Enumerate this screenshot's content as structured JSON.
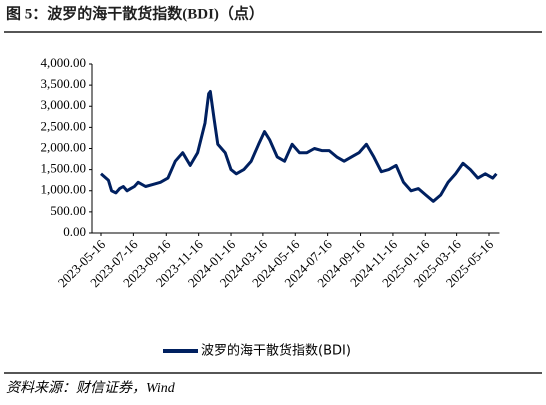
{
  "chart_data": {
    "type": "line",
    "title": "图 5：波罗的海干散货指数(BDI)（点）",
    "source": "资料来源：财信证券，Wind",
    "x": [
      "2023-05-16",
      "2023-05-30",
      "2023-06-05",
      "2023-06-13",
      "2023-06-20",
      "2023-06-27",
      "2023-07-04",
      "2023-07-11",
      "2023-07-18",
      "2023-07-25",
      "2023-08-08",
      "2023-08-22",
      "2023-09-05",
      "2023-09-19",
      "2023-10-03",
      "2023-10-17",
      "2023-10-31",
      "2023-11-14",
      "2023-11-28",
      "2023-12-05",
      "2023-12-08",
      "2023-12-15",
      "2023-12-22",
      "2024-01-05",
      "2024-01-16",
      "2024-01-26",
      "2024-02-09",
      "2024-02-23",
      "2024-03-08",
      "2024-03-19",
      "2024-03-29",
      "2024-04-12",
      "2024-04-26",
      "2024-05-10",
      "2024-05-24",
      "2024-06-07",
      "2024-06-21",
      "2024-07-05",
      "2024-07-19",
      "2024-08-02",
      "2024-08-16",
      "2024-08-30",
      "2024-09-13",
      "2024-09-27",
      "2024-10-11",
      "2024-10-25",
      "2024-11-08",
      "2024-11-22",
      "2024-12-06",
      "2024-12-20",
      "2025-01-03",
      "2025-01-17",
      "2025-01-31",
      "2025-02-14",
      "2025-02-28",
      "2025-03-14",
      "2025-03-28",
      "2025-04-11",
      "2025-04-25",
      "2025-05-09",
      "2025-05-23",
      "2025-05-30"
    ],
    "series": [
      {
        "name": "波罗的海干散货指数(BDI)",
        "color": "#002060",
        "values": [
          1400,
          1250,
          1000,
          950,
          1050,
          1100,
          1000,
          1050,
          1100,
          1200,
          1100,
          1150,
          1200,
          1300,
          1700,
          1900,
          1600,
          1900,
          2600,
          3300,
          3350,
          2700,
          2100,
          1900,
          1500,
          1400,
          1500,
          1700,
          2100,
          2400,
          2200,
          1800,
          1700,
          2100,
          1900,
          1900,
          2000,
          1950,
          1950,
          1800,
          1700,
          1800,
          1900,
          2100,
          1800,
          1450,
          1500,
          1600,
          1200,
          1000,
          1050,
          900,
          750,
          900,
          1200,
          1400,
          1650,
          1500,
          1300,
          1400,
          1300,
          1400
        ]
      }
    ],
    "xticks": [
      "2023-05-16",
      "2023-07-16",
      "2023-09-16",
      "2023-11-16",
      "2024-01-16",
      "2024-03-16",
      "2024-05-16",
      "2024-07-16",
      "2024-09-16",
      "2024-11-16",
      "2025-01-16",
      "2025-03-16",
      "2025-05-16"
    ],
    "ylim": [
      0,
      4000
    ],
    "yticks": [
      {
        "value": 0,
        "label": "0.00"
      },
      {
        "value": 500,
        "label": "500.00"
      },
      {
        "value": 1000,
        "label": "1,000.00"
      },
      {
        "value": 1500,
        "label": "1,500.00"
      },
      {
        "value": 2000,
        "label": "2,000.00"
      },
      {
        "value": 2500,
        "label": "2,500.00"
      },
      {
        "value": 3000,
        "label": "3,000.00"
      },
      {
        "value": 3500,
        "label": "3,500.00"
      },
      {
        "value": 4000,
        "label": "4,000.00"
      }
    ],
    "legend": "bottom"
  }
}
